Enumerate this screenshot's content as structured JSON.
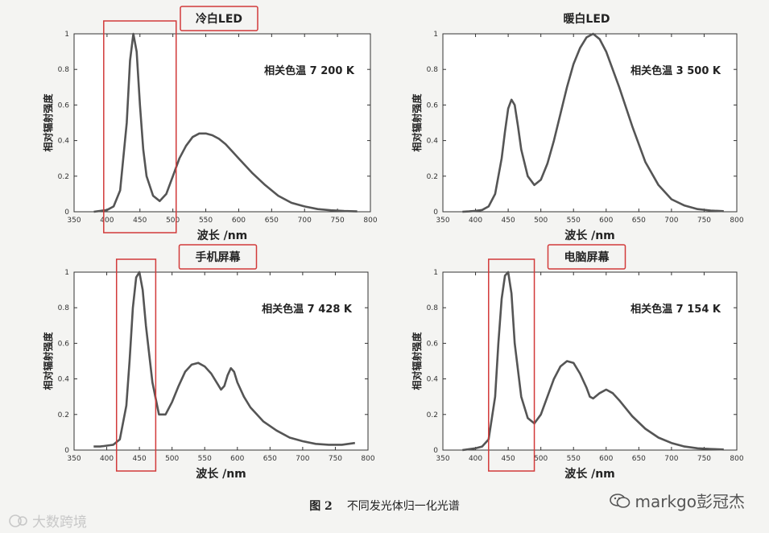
{
  "caption": {
    "figure": "图 2",
    "text": "不同发光体归一化光谱"
  },
  "watermarks": {
    "right": "markgo彭冠杰",
    "left": "大数跨境"
  },
  "colors": {
    "curve": "#555555",
    "highlight_box": "#d23a3a",
    "axis": "#333333",
    "panel_bg": "#ffffff"
  },
  "chart_data": [
    {
      "type": "line",
      "title": "冷白LED",
      "title_boxed": true,
      "annotation": "相关色温 7 200 K",
      "xlabel": "波长 /nm",
      "ylabel": "相对辐射强度",
      "xlim": [
        350,
        800
      ],
      "ylim": [
        0,
        1
      ],
      "xticks": [
        350,
        400,
        450,
        500,
        550,
        600,
        650,
        700,
        750,
        800
      ],
      "yticks": [
        0,
        0.2,
        0.4,
        0.6,
        0.8,
        1
      ],
      "highlight_x": [
        395,
        505
      ],
      "series": [
        {
          "x": [
            380,
            390,
            400,
            410,
            420,
            430,
            435,
            440,
            445,
            450,
            455,
            460,
            470,
            480,
            490,
            500,
            510,
            520,
            530,
            540,
            550,
            560,
            570,
            580,
            590,
            600,
            620,
            640,
            660,
            680,
            700,
            720,
            740,
            760,
            780
          ],
          "y": [
            0,
            0.005,
            0.01,
            0.03,
            0.12,
            0.5,
            0.85,
            1.0,
            0.9,
            0.6,
            0.35,
            0.2,
            0.09,
            0.06,
            0.1,
            0.2,
            0.3,
            0.37,
            0.42,
            0.44,
            0.44,
            0.43,
            0.41,
            0.38,
            0.34,
            0.3,
            0.22,
            0.15,
            0.09,
            0.05,
            0.03,
            0.015,
            0.008,
            0.004,
            0.002
          ]
        }
      ]
    },
    {
      "type": "line",
      "title": "暖白LED",
      "title_boxed": false,
      "annotation": "相关色温 3 500 K",
      "xlabel": "波长 /nm",
      "ylabel": "相对辐射强度",
      "xlim": [
        350,
        800
      ],
      "ylim": [
        0,
        1
      ],
      "xticks": [
        350,
        400,
        450,
        500,
        550,
        600,
        650,
        700,
        750,
        800
      ],
      "yticks": [
        0,
        0.2,
        0.4,
        0.6,
        0.8,
        1
      ],
      "highlight_x": null,
      "series": [
        {
          "x": [
            380,
            390,
            400,
            410,
            420,
            430,
            440,
            445,
            450,
            455,
            460,
            465,
            470,
            480,
            490,
            500,
            510,
            520,
            530,
            540,
            550,
            560,
            570,
            580,
            590,
            600,
            610,
            620,
            640,
            660,
            680,
            700,
            720,
            740,
            760,
            780
          ],
          "y": [
            0,
            0.002,
            0.005,
            0.01,
            0.03,
            0.1,
            0.3,
            0.45,
            0.58,
            0.63,
            0.6,
            0.48,
            0.35,
            0.2,
            0.15,
            0.18,
            0.27,
            0.4,
            0.55,
            0.7,
            0.83,
            0.92,
            0.98,
            1.0,
            0.97,
            0.9,
            0.8,
            0.7,
            0.48,
            0.28,
            0.15,
            0.07,
            0.035,
            0.015,
            0.007,
            0.003
          ]
        }
      ]
    },
    {
      "type": "line",
      "title": "手机屏幕",
      "title_boxed": true,
      "annotation": "相关色温 7 428 K",
      "xlabel": "波长 /nm",
      "ylabel": "相对辐射强度",
      "xlim": [
        350,
        800
      ],
      "ylim": [
        0,
        1
      ],
      "xticks": [
        350,
        400,
        450,
        500,
        550,
        600,
        650,
        700,
        750,
        800
      ],
      "yticks": [
        0,
        0.2,
        0.4,
        0.6,
        0.8,
        1
      ],
      "highlight_x": [
        415,
        475
      ],
      "series": [
        {
          "x": [
            380,
            390,
            400,
            410,
            420,
            430,
            435,
            440,
            445,
            450,
            455,
            460,
            470,
            480,
            490,
            500,
            510,
            520,
            530,
            540,
            550,
            560,
            570,
            575,
            580,
            585,
            590,
            595,
            600,
            610,
            620,
            640,
            660,
            680,
            700,
            720,
            740,
            760,
            780
          ],
          "y": [
            0.02,
            0.02,
            0.025,
            0.03,
            0.06,
            0.25,
            0.5,
            0.8,
            0.97,
            1.0,
            0.9,
            0.7,
            0.38,
            0.2,
            0.2,
            0.27,
            0.36,
            0.44,
            0.48,
            0.49,
            0.47,
            0.43,
            0.37,
            0.34,
            0.36,
            0.42,
            0.46,
            0.44,
            0.38,
            0.3,
            0.24,
            0.16,
            0.11,
            0.07,
            0.05,
            0.035,
            0.03,
            0.03,
            0.04
          ]
        }
      ]
    },
    {
      "type": "line",
      "title": "电脑屏幕",
      "title_boxed": true,
      "annotation": "相关色温 7 154 K",
      "xlabel": "波长 /nm",
      "ylabel": "相对辐射强度",
      "xlim": [
        350,
        800
      ],
      "ylim": [
        0,
        1
      ],
      "xticks": [
        350,
        400,
        450,
        500,
        550,
        600,
        650,
        700,
        750,
        800
      ],
      "yticks": [
        0,
        0.2,
        0.4,
        0.6,
        0.8,
        1
      ],
      "highlight_x": [
        420,
        490
      ],
      "series": [
        {
          "x": [
            380,
            390,
            400,
            410,
            420,
            430,
            435,
            440,
            445,
            450,
            455,
            460,
            470,
            480,
            490,
            500,
            510,
            520,
            530,
            540,
            550,
            560,
            570,
            575,
            580,
            590,
            600,
            610,
            620,
            640,
            660,
            680,
            700,
            720,
            740,
            760,
            780
          ],
          "y": [
            0,
            0.005,
            0.01,
            0.02,
            0.06,
            0.3,
            0.6,
            0.85,
            0.98,
            1.0,
            0.88,
            0.6,
            0.3,
            0.18,
            0.15,
            0.2,
            0.3,
            0.4,
            0.47,
            0.5,
            0.49,
            0.43,
            0.35,
            0.3,
            0.29,
            0.32,
            0.34,
            0.32,
            0.28,
            0.19,
            0.12,
            0.07,
            0.04,
            0.02,
            0.01,
            0.006,
            0.003
          ]
        }
      ]
    }
  ]
}
